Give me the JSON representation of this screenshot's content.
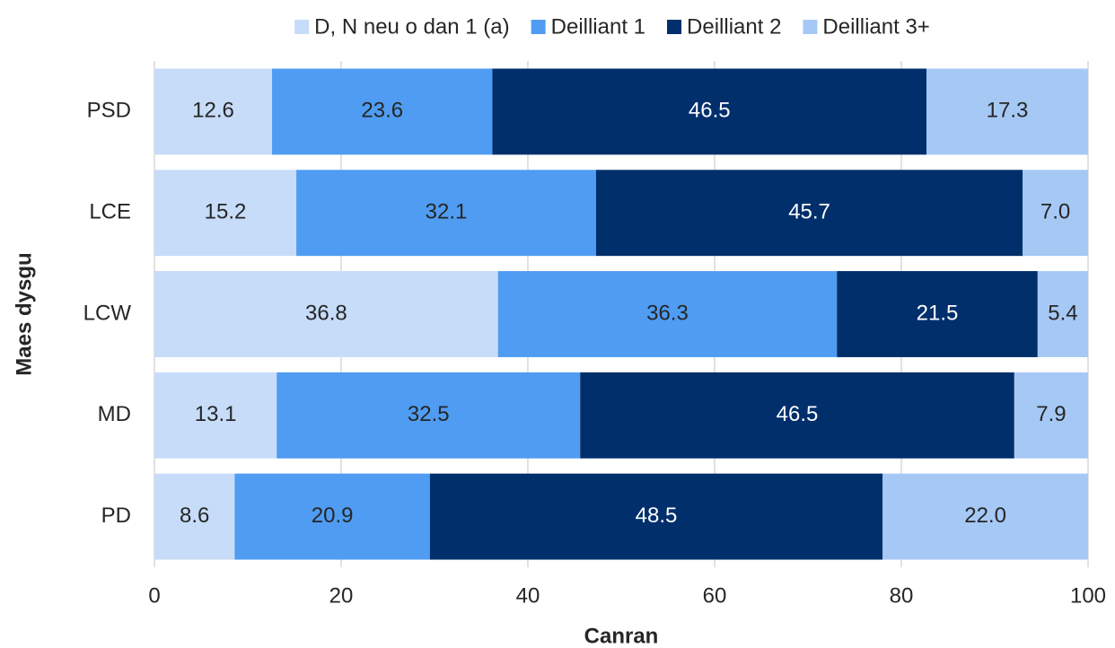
{
  "chart_data": {
    "type": "stacked_barh",
    "categories": [
      "PSD",
      "LCE",
      "LCW",
      "MD",
      "PD"
    ],
    "series": [
      {
        "name": "D, N neu o dan 1 (a)",
        "color": "#c6dcf8",
        "values": [
          12.6,
          15.2,
          36.8,
          13.1,
          8.6
        ],
        "value_labels": [
          "12.6",
          "15.2",
          "36.8",
          "13.1",
          "8.6"
        ]
      },
      {
        "name": "Deilliant 1",
        "color": "#4f9cf2",
        "values": [
          23.6,
          32.1,
          36.3,
          32.5,
          20.9
        ],
        "value_labels": [
          "23.6",
          "32.1",
          "36.3",
          "32.5",
          "20.9"
        ]
      },
      {
        "name": "Deilliant 2",
        "color": "#002f6c",
        "values": [
          46.5,
          45.7,
          21.5,
          46.5,
          48.5
        ],
        "value_labels": [
          "46.5",
          "45.7",
          "21.5",
          "46.5",
          "48.5"
        ]
      },
      {
        "name": "Deilliant 3+",
        "color": "#a6c8f5",
        "values": [
          17.3,
          7.0,
          5.4,
          7.9,
          22.0
        ],
        "value_labels": [
          "17.3",
          "7.0",
          "5.4",
          "7.9",
          "22.0"
        ]
      }
    ],
    "xlabel": "Canran",
    "ylabel": "Maes dysgu",
    "xlim": [
      0,
      100
    ],
    "xticks": [
      0,
      20,
      40,
      60,
      80,
      100
    ],
    "grid": true,
    "legend": "top"
  }
}
